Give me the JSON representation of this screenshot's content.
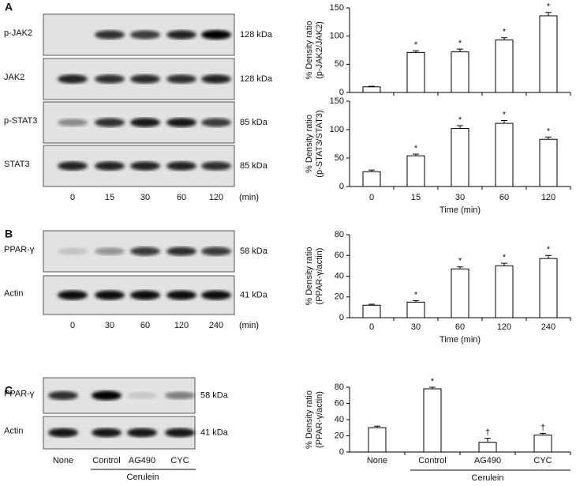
{
  "panels": [
    {
      "letter": "A",
      "rows": [
        {
          "label": "p-JAK2",
          "size": "128 kDa"
        },
        {
          "label": "JAK2",
          "size": "128 kDa"
        },
        {
          "label": "p-STAT3",
          "size": "85 kDa"
        },
        {
          "label": "STAT3",
          "size": "85 kDa"
        }
      ],
      "lanes": [
        "0",
        "15",
        "30",
        "60",
        "120"
      ],
      "unit": "(min)"
    },
    {
      "letter": "B",
      "rows": [
        {
          "label": "PPAR-γ",
          "size": "58 kDa"
        },
        {
          "label": "Actin",
          "size": "41 kDa"
        }
      ],
      "lanes": [
        "0",
        "30",
        "60",
        "120",
        "240"
      ],
      "unit": "(min)"
    },
    {
      "letter": "C",
      "rows": [
        {
          "label": "PPAR-γ",
          "size": "58 kDa"
        },
        {
          "label": "Actin",
          "size": "41 kDa"
        }
      ],
      "lanes": [
        "None",
        "Control",
        "AG490",
        "CYC"
      ],
      "group": "Cerulein"
    }
  ],
  "chart_data": [
    {
      "type": "bar",
      "ylabel": [
        "% Density ratio",
        "(p-JAK2/JAK2)"
      ],
      "categories": [
        null,
        null,
        null,
        null,
        null
      ],
      "values": [
        10,
        71,
        72,
        93,
        136
      ],
      "errors": [
        1,
        3,
        5,
        4,
        6
      ],
      "markers": [
        null,
        "*",
        "*",
        "*",
        "*"
      ],
      "color": "#ffffff",
      "ylim": [
        0,
        150
      ],
      "yticks": [
        0,
        50,
        100,
        150
      ]
    },
    {
      "type": "bar",
      "ylabel": [
        "% Density ratio",
        "(p-STAT3/STAT3)"
      ],
      "xlabel": "Time (min)",
      "categories": [
        "0",
        "15",
        "30",
        "60",
        "120"
      ],
      "values": [
        26,
        54,
        102,
        111,
        83
      ],
      "errors": [
        3,
        3,
        5,
        5,
        4
      ],
      "markers": [
        null,
        "*",
        "*",
        "*",
        "*"
      ],
      "color": "#ffffff",
      "ylim": [
        0,
        150
      ],
      "yticks": [
        0,
        50,
        100,
        150
      ]
    },
    {
      "type": "bar",
      "ylabel": [
        "% Density ratio",
        "(PPAR-γ/actin)"
      ],
      "xlabel": "Time (min)",
      "categories": [
        "0",
        "30",
        "60",
        "120",
        "240"
      ],
      "values": [
        12,
        15,
        47,
        50,
        57
      ],
      "errors": [
        1,
        1.5,
        2,
        2.5,
        3
      ],
      "markers": [
        null,
        "*",
        "*",
        "*",
        "*"
      ],
      "color": "#ffffff",
      "ylim": [
        0,
        80
      ],
      "yticks": [
        0,
        20,
        40,
        60,
        80
      ]
    },
    {
      "type": "bar",
      "ylabel": [
        "% Density ratio",
        "(PPAR-γ/actin)"
      ],
      "categories": [
        "None",
        "Control",
        "AG490",
        "CYC"
      ],
      "values": [
        30,
        78,
        12,
        21
      ],
      "errors": [
        2,
        2,
        5,
        2
      ],
      "markers": [
        null,
        "*",
        "†",
        "†"
      ],
      "group": "Cerulein",
      "color": "#ffffff",
      "ylim": [
        0,
        80
      ],
      "yticks": [
        0,
        20,
        40,
        60,
        80
      ]
    }
  ]
}
